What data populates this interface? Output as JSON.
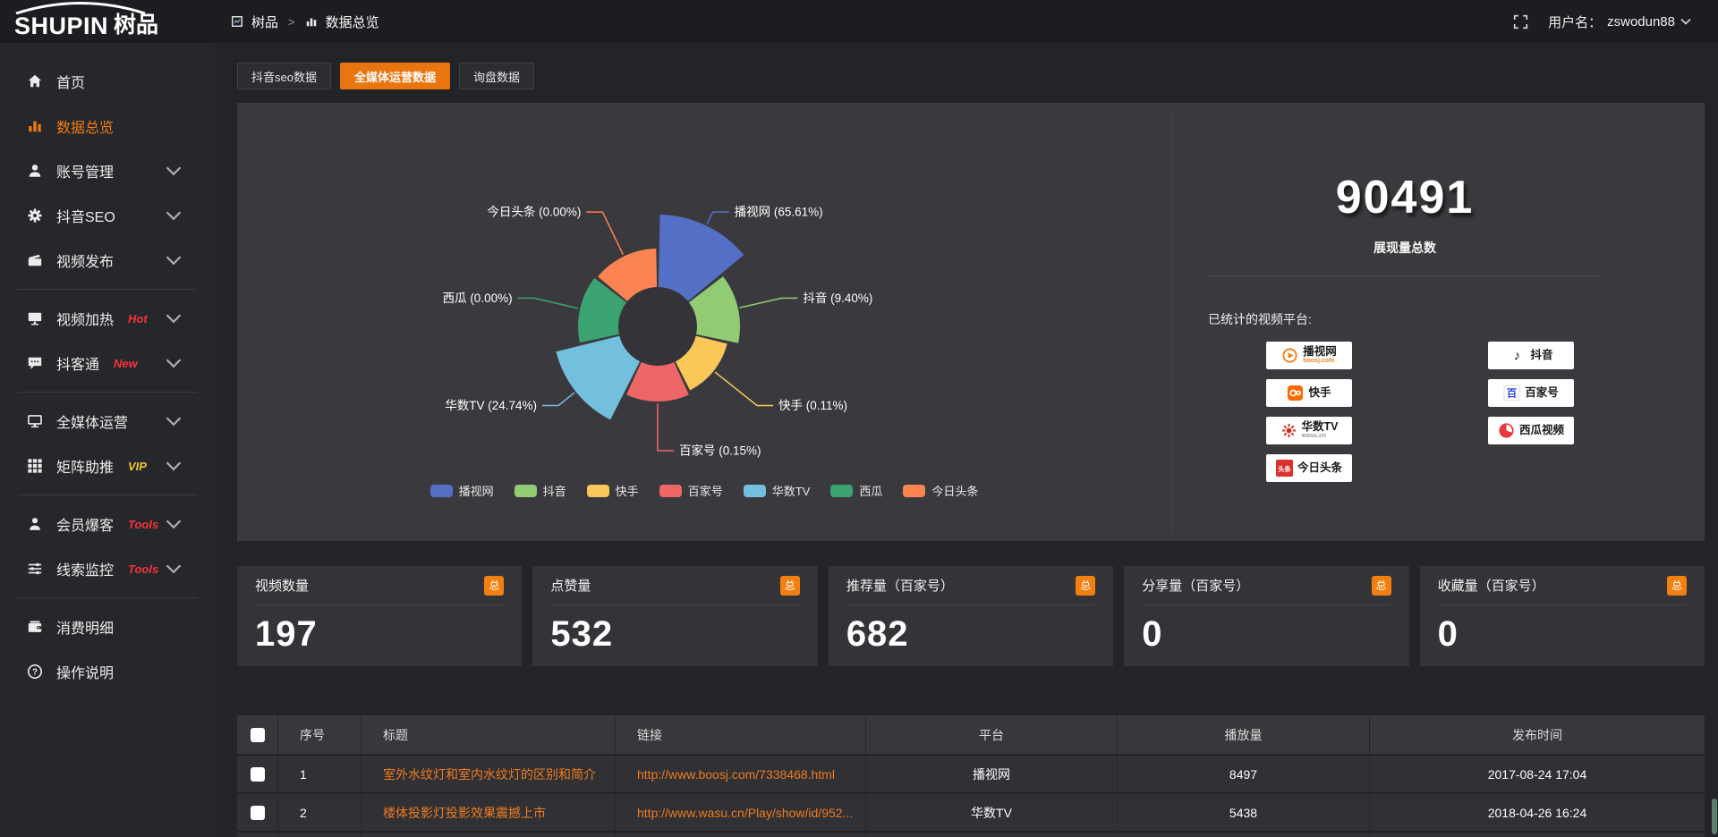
{
  "topbar": {
    "logo_en": "SHUPIN",
    "logo_cn": "树品",
    "breadcrumb": {
      "root": "树品",
      "separator": ">",
      "current": "数据总览"
    },
    "user_label": "用户名：",
    "username": "zswodun88"
  },
  "sidebar": {
    "items": [
      {
        "icon": "home-icon",
        "label": "首页"
      },
      {
        "icon": "bar-chart-icon",
        "label": "数据总览",
        "active": true
      },
      {
        "icon": "user-icon",
        "label": "账号管理",
        "expandable": true
      },
      {
        "icon": "gear-icon",
        "label": "抖音SEO",
        "expandable": true
      },
      {
        "icon": "clapperboard-icon",
        "label": "视频发布",
        "expandable": true
      },
      {
        "icon": "screen-icon",
        "label": "视频加热",
        "badge": "Hot",
        "badge_style": "red",
        "expandable": true
      },
      {
        "icon": "chat-icon",
        "label": "抖客通",
        "badge": "New",
        "badge_style": "red",
        "expandable": true
      },
      {
        "icon": "monitor-icon",
        "label": "全媒体运营",
        "expandable": true
      },
      {
        "icon": "grid-icon",
        "label": "矩阵助推",
        "badge": "VIP",
        "badge_style": "yellow",
        "expandable": true
      },
      {
        "icon": "member-icon",
        "label": "会员爆客",
        "badge": "Tools",
        "badge_style": "red",
        "expandable": true
      },
      {
        "icon": "sliders-icon",
        "label": "线索监控",
        "badge": "Tools",
        "badge_style": "red",
        "expandable": true
      },
      {
        "icon": "wallet-icon",
        "label": "消费明细"
      },
      {
        "icon": "question-icon",
        "label": "操作说明"
      }
    ]
  },
  "tabs": {
    "items": [
      {
        "label": "抖音seo数据",
        "active": false
      },
      {
        "label": "全媒体运营数据",
        "active": true
      },
      {
        "label": "询盘数据",
        "active": false
      }
    ]
  },
  "chart_data": {
    "type": "pie",
    "style": "nightingale-rose-donut",
    "legend_position": "bottom",
    "total_impressions": 90491,
    "items": [
      {
        "name": "播视网",
        "percent": 65.61,
        "color": "#5470c6"
      },
      {
        "name": "抖音",
        "percent": 9.4,
        "color": "#91cc75"
      },
      {
        "name": "快手",
        "percent": 0.11,
        "color": "#fac858"
      },
      {
        "name": "百家号",
        "percent": 0.15,
        "color": "#ee6666"
      },
      {
        "name": "华数TV",
        "percent": 24.74,
        "color": "#73c0de"
      },
      {
        "name": "西瓜",
        "percent": 0.0,
        "color": "#3ba272"
      },
      {
        "name": "今日头条",
        "percent": 0.0,
        "color": "#fc8452"
      }
    ]
  },
  "summary": {
    "total_value": "90491",
    "total_label": "展现量总数",
    "platforms_title": "已统计的视频平台:",
    "platform_columns": {
      "left": [
        {
          "name": "播视网",
          "sub": "boosj.com",
          "icon": "boosj-icon"
        },
        {
          "name": "快手",
          "icon": "kuaishou-icon"
        },
        {
          "name": "华数TV",
          "sub": "wasu.cn",
          "icon": "wasu-icon"
        },
        {
          "name": "今日头条",
          "icon": "toutiao-icon"
        }
      ],
      "right": [
        {
          "name": "抖音",
          "icon": "douyin-icon"
        },
        {
          "name": "百家号",
          "icon": "baijiahao-icon"
        },
        {
          "name": "西瓜视频",
          "icon": "xigua-icon"
        }
      ]
    }
  },
  "stats": {
    "badge_label": "总",
    "cards": [
      {
        "title": "视频数量",
        "value": "197"
      },
      {
        "title": "点赞量",
        "value": "532"
      },
      {
        "title": "推荐量（百家号）",
        "value": "682"
      },
      {
        "title": "分享量（百家号）",
        "value": "0"
      },
      {
        "title": "收藏量（百家号）",
        "value": "0"
      }
    ]
  },
  "table": {
    "headers": [
      "序号",
      "标题",
      "链接",
      "平台",
      "播放量",
      "发布时间"
    ],
    "rows": [
      {
        "index": "1",
        "title": "室外水纹灯和室内水纹灯的区别和简介",
        "link": "http://www.boosj.com/7338468.html",
        "platform": "播视网",
        "plays": "8497",
        "published": "2017-08-24 17:04"
      },
      {
        "index": "2",
        "title": "楼体投影灯投影效果震撼上市",
        "link": "http://www.wasu.cn/Play/show/id/952...",
        "platform": "华数TV",
        "plays": "5438",
        "published": "2018-04-26 16:24"
      }
    ]
  }
}
